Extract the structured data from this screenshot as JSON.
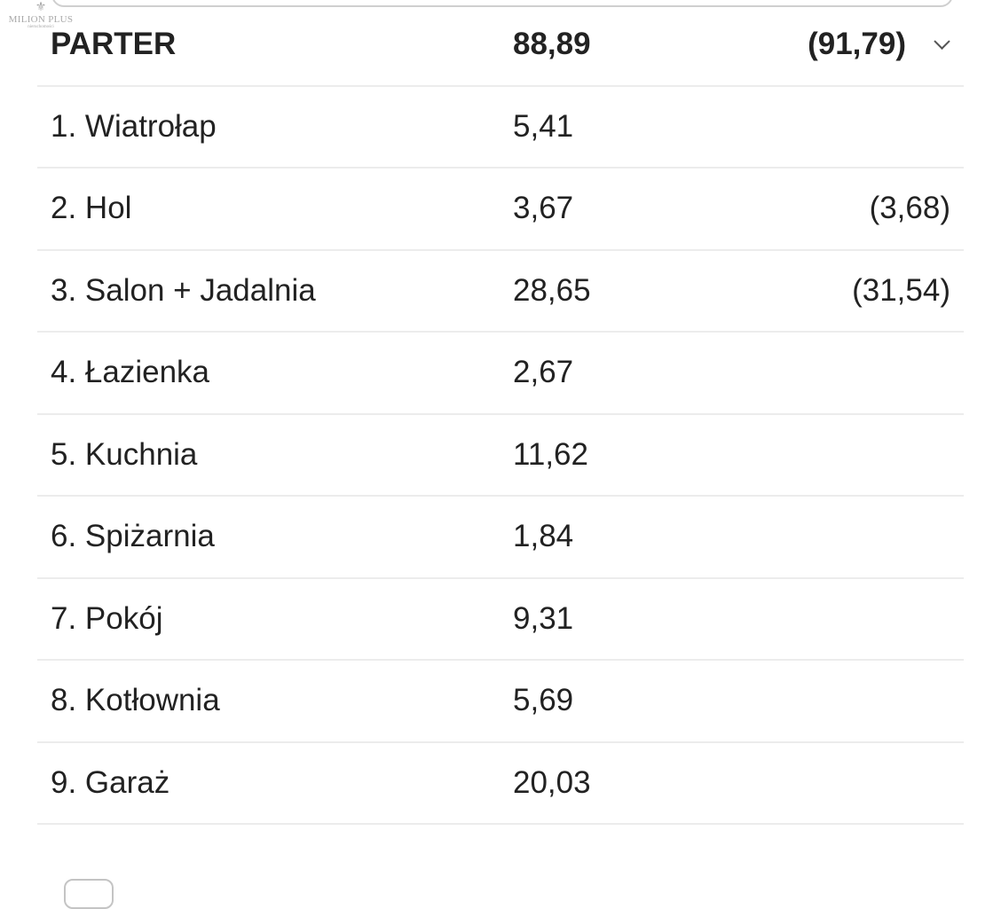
{
  "logo": {
    "name": "MILION PLUS",
    "tagline": "nieruchomości"
  },
  "section": {
    "name": "PARTER",
    "area": "88,89",
    "alt_area": "(91,79)",
    "icon": "chevron-down-icon"
  },
  "rooms": [
    {
      "name": "1. Wiatrołap",
      "area": "5,41",
      "alt_area": ""
    },
    {
      "name": "2. Hol",
      "area": "3,67",
      "alt_area": "(3,68)"
    },
    {
      "name": "3. Salon + Jadalnia",
      "area": "28,65",
      "alt_area": "(31,54)"
    },
    {
      "name": "4. Łazienka",
      "area": "2,67",
      "alt_area": ""
    },
    {
      "name": "5. Kuchnia",
      "area": "11,62",
      "alt_area": ""
    },
    {
      "name": "6. Spiżarnia",
      "area": "1,84",
      "alt_area": ""
    },
    {
      "name": "7. Pokój",
      "area": "9,31",
      "alt_area": ""
    },
    {
      "name": "8. Kotłownia",
      "area": "5,69",
      "alt_area": ""
    },
    {
      "name": "9. Garaż",
      "area": "20,03",
      "alt_area": ""
    }
  ]
}
